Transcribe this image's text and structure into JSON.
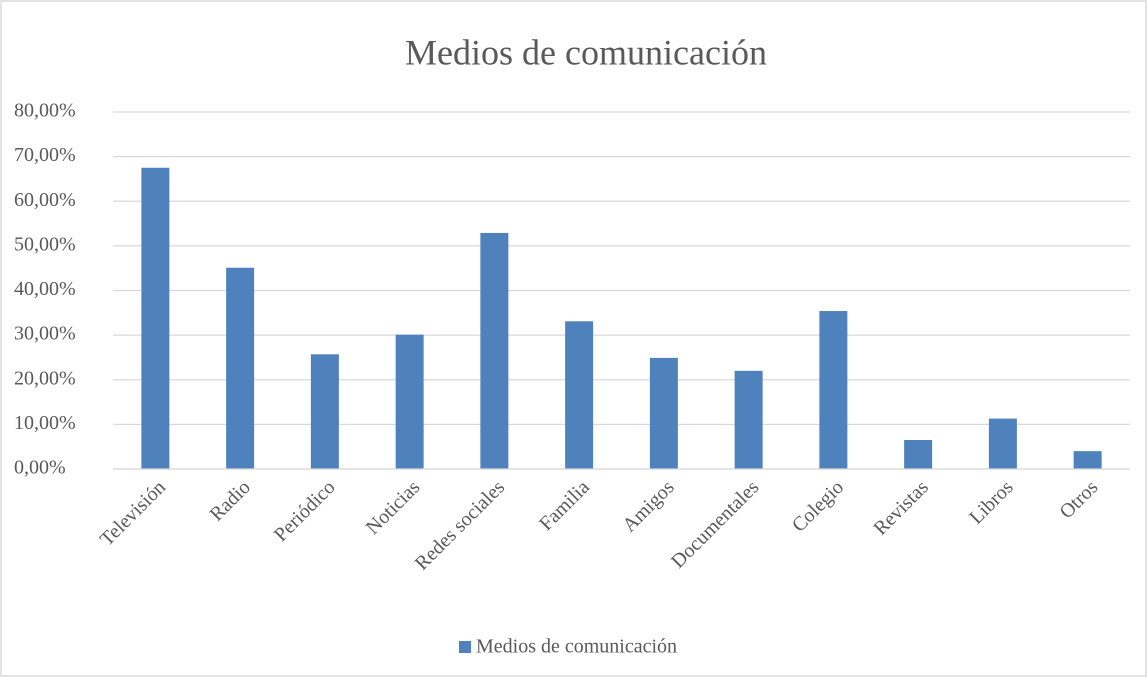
{
  "chart_data": {
    "type": "bar",
    "title": "Medios de comunicación",
    "categories": [
      "Televisión",
      "Radio",
      "Periódico",
      "Noticias",
      "Redes sociales",
      "Familia",
      "Amigos",
      "Documentales",
      "Colegio",
      "Revistas",
      "Libros",
      "Otros"
    ],
    "series": [
      {
        "name": "Medios de comunicación",
        "color": "#4f81bd",
        "values": [
          67.5,
          45.1,
          25.7,
          30.1,
          52.9,
          33.1,
          24.9,
          22.0,
          35.4,
          6.5,
          11.3,
          4.0
        ]
      }
    ],
    "ylim": [
      0,
      80
    ],
    "yticks": [
      {
        "value": 0,
        "label": "0,00%"
      },
      {
        "value": 10,
        "label": "10,00%"
      },
      {
        "value": 20,
        "label": "20,00%"
      },
      {
        "value": 30,
        "label": "30,00%"
      },
      {
        "value": 40,
        "label": "40,00%"
      },
      {
        "value": 50,
        "label": "50,00%"
      },
      {
        "value": 60,
        "label": "60,00%"
      },
      {
        "value": 70,
        "label": "70,00%"
      },
      {
        "value": 80,
        "label": "80,00%"
      }
    ],
    "grid": true,
    "legend": "bottom"
  }
}
